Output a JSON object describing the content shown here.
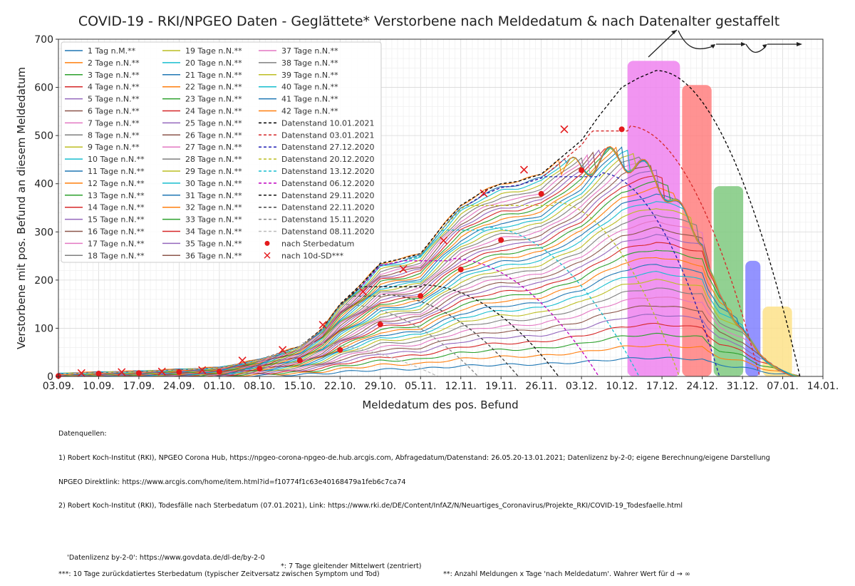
{
  "chart_data": {
    "type": "line",
    "title": "COVID-19 - RKI/NPGEO Daten - Geglättete* Verstorbene nach Meldedatum & nach Datenalter gestaffelt",
    "xlabel": "Meldedatum des pos. Befund",
    "ylabel": "Verstorbene mit pos. Befund an diesem Meldedatum",
    "x_range_days": [
      0,
      133
    ],
    "x_start_date": "03.09.2020",
    "x_ticks": [
      {
        "day": 0,
        "label": "03.09."
      },
      {
        "day": 7,
        "label": "10.09."
      },
      {
        "day": 14,
        "label": "17.09."
      },
      {
        "day": 21,
        "label": "24.09."
      },
      {
        "day": 28,
        "label": "01.10."
      },
      {
        "day": 35,
        "label": "08.10."
      },
      {
        "day": 42,
        "label": "15.10."
      },
      {
        "day": 49,
        "label": "22.10."
      },
      {
        "day": 56,
        "label": "29.10."
      },
      {
        "day": 63,
        "label": "05.11."
      },
      {
        "day": 70,
        "label": "12.11."
      },
      {
        "day": 77,
        "label": "19.11."
      },
      {
        "day": 84,
        "label": "26.11."
      },
      {
        "day": 91,
        "label": "03.12."
      },
      {
        "day": 98,
        "label": "10.12."
      },
      {
        "day": 105,
        "label": "17.12."
      },
      {
        "day": 112,
        "label": "24.12."
      },
      {
        "day": 119,
        "label": "31.12."
      },
      {
        "day": 126,
        "label": "07.01."
      },
      {
        "day": 133,
        "label": "14.01."
      }
    ],
    "ylim": [
      0,
      700
    ],
    "y_ticks": [
      0,
      100,
      200,
      300,
      400,
      500,
      600,
      700
    ],
    "grid": true,
    "minor_grid": true,
    "legend_position": "upper-left",
    "envelope_final": {
      "name": "Datenstand 10.01.2021 (approx. final envelope)",
      "x_days": [
        0,
        7,
        14,
        21,
        28,
        35,
        42,
        46,
        49,
        53,
        56,
        60,
        63,
        67,
        70,
        74,
        77,
        80,
        84,
        88,
        91,
        94,
        98,
        101,
        104,
        107,
        110,
        112,
        113,
        115,
        119,
        122,
        125,
        129
      ],
      "values": [
        5,
        8,
        10,
        14,
        18,
        35,
        62,
        100,
        150,
        195,
        235,
        245,
        255,
        315,
        355,
        385,
        400,
        405,
        420,
        460,
        490,
        540,
        600,
        620,
        635,
        620,
        600,
        590,
        500,
        390,
        310,
        180,
        105,
        0
      ]
    },
    "age_series_count": 42,
    "age_series_legend": [
      {
        "label": "1 Tag n.M.**",
        "color": "#1f77b4"
      },
      {
        "label": "2 Tage n.N.**",
        "color": "#ff7f0e"
      },
      {
        "label": "3 Tage n.N.**",
        "color": "#2ca02c"
      },
      {
        "label": "4 Tage n.N.**",
        "color": "#d62728"
      },
      {
        "label": "5 Tage n.N.**",
        "color": "#9467bd"
      },
      {
        "label": "6 Tage n.N.**",
        "color": "#8c564b"
      },
      {
        "label": "7 Tage n.N.**",
        "color": "#e377c2"
      },
      {
        "label": "8 Tage n.N.**",
        "color": "#7f7f7f"
      },
      {
        "label": "9 Tage n.N.**",
        "color": "#bcbd22"
      },
      {
        "label": "10 Tage n.N.**",
        "color": "#17becf"
      },
      {
        "label": "11 Tage n.N.**",
        "color": "#1f77b4"
      },
      {
        "label": "12 Tage n.N.**",
        "color": "#ff7f0e"
      },
      {
        "label": "13 Tage n.N.**",
        "color": "#2ca02c"
      },
      {
        "label": "14 Tage n.N.**",
        "color": "#d62728"
      },
      {
        "label": "15 Tage n.N.**",
        "color": "#9467bd"
      },
      {
        "label": "16 Tage n.N.**",
        "color": "#8c564b"
      },
      {
        "label": "17 Tage n.N.**",
        "color": "#e377c2"
      },
      {
        "label": "18 Tage n.N.**",
        "color": "#7f7f7f"
      },
      {
        "label": "19 Tage n.N.**",
        "color": "#bcbd22"
      },
      {
        "label": "20 Tage n.N.**",
        "color": "#17becf"
      },
      {
        "label": "21 Tage n.N.**",
        "color": "#1f77b4"
      },
      {
        "label": "22 Tage n.N.**",
        "color": "#ff7f0e"
      },
      {
        "label": "23 Tage n.N.**",
        "color": "#2ca02c"
      },
      {
        "label": "24 Tage n.N.**",
        "color": "#d62728"
      },
      {
        "label": "25 Tage n.N.**",
        "color": "#9467bd"
      },
      {
        "label": "26 Tage n.N.**",
        "color": "#8c564b"
      },
      {
        "label": "27 Tage n.N.**",
        "color": "#e377c2"
      },
      {
        "label": "28 Tage n.N.**",
        "color": "#7f7f7f"
      },
      {
        "label": "29 Tage n.N.**",
        "color": "#bcbd22"
      },
      {
        "label": "30 Tage n.N.**",
        "color": "#17becf"
      },
      {
        "label": "31 Tage n.N.**",
        "color": "#1f77b4"
      },
      {
        "label": "32 Tage n.N.**",
        "color": "#ff7f0e"
      },
      {
        "label": "33 Tage n.N.**",
        "color": "#2ca02c"
      },
      {
        "label": "34 Tage n.N.**",
        "color": "#d62728"
      },
      {
        "label": "35 Tage n.N.**",
        "color": "#9467bd"
      },
      {
        "label": "36 Tage n.N.**",
        "color": "#8c564b"
      },
      {
        "label": "37 Tage n.N.**",
        "color": "#e377c2"
      },
      {
        "label": "38 Tage n.N.**",
        "color": "#7f7f7f"
      },
      {
        "label": "39 Tage n.N.**",
        "color": "#bcbd22"
      },
      {
        "label": "40 Tage n.N.**",
        "color": "#17becf"
      },
      {
        "label": "41 Tage n.N.**",
        "color": "#1f77b4"
      },
      {
        "label": "42 Tage n.N.**",
        "color": "#ff7f0e"
      }
    ],
    "datenstand_series": [
      {
        "label": "Datenstand 10.01.2021",
        "color": "#000000",
        "end_day": 129,
        "peak_day": 104,
        "peak": 635
      },
      {
        "label": "Datenstand 03.01.2021",
        "color": "#d62728",
        "end_day": 122,
        "peak_day": 99,
        "peak": 520
      },
      {
        "label": "Datenstand 27.12.2020",
        "color": "#1f1fb4",
        "end_day": 115,
        "peak_day": 94,
        "peak": 423
      },
      {
        "label": "Datenstand 20.12.2020",
        "color": "#bcbd22",
        "end_day": 108,
        "peak_day": 86,
        "peak": 362
      },
      {
        "label": "Datenstand 13.12.2020",
        "color": "#17becf",
        "end_day": 101,
        "peak_day": 74,
        "peak": 310
      },
      {
        "label": "Datenstand 06.12.2020",
        "color": "#c000c0",
        "end_day": 94,
        "peak_day": 68,
        "peak": 245
      },
      {
        "label": "Datenstand 29.11.2020",
        "color": "#111111",
        "end_day": 87,
        "peak_day": 63,
        "peak": 190
      },
      {
        "label": "Datenstand 22.11.2020",
        "color": "#444444",
        "end_day": 80,
        "peak_day": 56,
        "peak": 170
      },
      {
        "label": "Datenstand 15.11.2020",
        "color": "#888888",
        "end_day": 73,
        "peak_day": 49,
        "peak": 150
      },
      {
        "label": "Datenstand 08.11.2020",
        "color": "#bbbbbb",
        "end_day": 66,
        "peak_day": 42,
        "peak": 70
      }
    ],
    "sterbedatum_points": {
      "label": "nach Sterbedatum",
      "color": "#e41a1c",
      "x_days": [
        0,
        7,
        14,
        21,
        28,
        35,
        42,
        49,
        56,
        63,
        70,
        77,
        84,
        91,
        98
      ],
      "values": [
        1,
        6,
        7,
        9,
        10,
        16,
        33,
        55,
        108,
        167,
        222,
        283,
        379,
        428,
        513
      ]
    },
    "sterbedatum_10d_points": {
      "label": "nach 10d-SD***",
      "color": "#e41a1c",
      "x_days": [
        4,
        11,
        18,
        25,
        32,
        39,
        46,
        53,
        60,
        67,
        74,
        81,
        88
      ],
      "values": [
        7,
        9,
        10,
        13,
        33,
        55,
        107,
        176,
        223,
        282,
        380,
        429,
        513
      ]
    },
    "highlight_blocks": [
      {
        "name": "block-magenta",
        "color": "#ee82ee",
        "x_days": [
          99,
          108.5
        ],
        "value": 655
      },
      {
        "name": "block-red",
        "color": "#ff7f7f",
        "x_days": [
          108.5,
          114
        ],
        "value": 605
      },
      {
        "name": "block-green",
        "color": "#7fc97f",
        "x_days": [
          114,
          119.5
        ],
        "value": 395
      },
      {
        "name": "block-blue",
        "color": "#8080ff",
        "x_days": [
          119.5,
          122.5
        ],
        "value": 240
      },
      {
        "name": "block-yellow",
        "color": "#fde28a",
        "x_days": [
          122.5,
          128
        ],
        "value": 145
      }
    ]
  },
  "footer": {
    "lines": [
      "Datenquellen:",
      "1) Robert Koch-Institut (RKI), NPGEO Corona Hub, https://npgeo-corona-npgeo-de.hub.arcgis.com, Abfragedatum/Datenstand: 26.05.20-13.01.2021; Datenlizenz by-2-0; eigene Berechnung/eigene Darstellung",
      "NPGEO Direktlink: https://www.arcgis.com/home/item.html?id=f10774f1c63e40168479a1feb6c7ca74",
      "2) Robert Koch-Institut (RKI), Todesfälle nach Sterbedatum (07.01.2021), Link: https://www.rki.de/DE/Content/InfAZ/N/Neuartiges_Coronavirus/Projekte_RKI/COVID-19_Todesfaelle.html"
    ],
    "license": "'Datenlizenz by-2-0': https://www.govdata.de/dl-de/by-2-0",
    "note_smoothing": "*: 7 Tage gleitender Mittelwert (zentriert)",
    "note_age": "**: Anzahl Meldungen x Tage 'nach Meldedatum'. Wahrer Wert für d → ∞",
    "note_10d": "***: 10 Tage zurückdatiertes Sterbedatum (typischer Zeitversatz zwischen Symptom und Tod)"
  }
}
